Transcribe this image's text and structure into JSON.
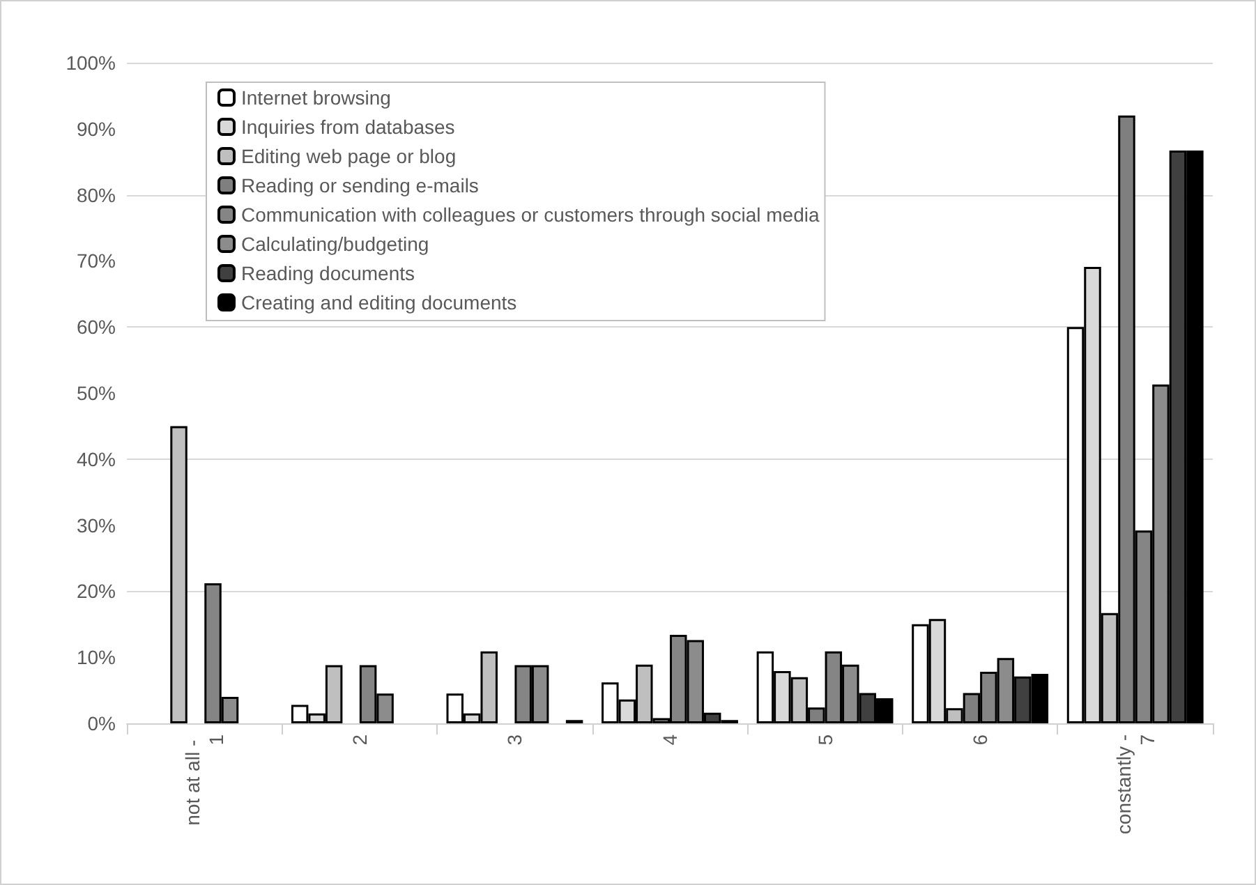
{
  "chart_data": {
    "type": "bar",
    "categories": [
      "not at all - 1",
      "2",
      "3",
      "4",
      "5",
      "6",
      "constantly - 7"
    ],
    "series": [
      {
        "name": "Internet browsing",
        "color": "#ffffff",
        "values": [
          null,
          2.8,
          4.5,
          6.2,
          10.9,
          15,
          60
        ]
      },
      {
        "name": "Inquiries from databases",
        "color": "#d9d9d9",
        "values": [
          null,
          1.5,
          1.5,
          3.6,
          7.9,
          15.8,
          69.1
        ]
      },
      {
        "name": "Editing web page or blog",
        "color": "#bfbfbf",
        "values": [
          45,
          8.8,
          10.9,
          8.9,
          7,
          2.3,
          16.7
        ]
      },
      {
        "name": "Reading or sending e-mails",
        "color": "#7f7f7f",
        "values": [
          null,
          null,
          null,
          0.8,
          2.4,
          4.6,
          92
        ]
      },
      {
        "name": "Communication with colleagues or customers through social media",
        "color": "#858585",
        "values": [
          21.2,
          8.8,
          8.8,
          13.4,
          10.9,
          7.8,
          29.2
        ]
      },
      {
        "name": "Calculating/budgeting",
        "color": "#8c8c8c",
        "values": [
          4,
          4.5,
          8.8,
          12.6,
          8.9,
          9.9,
          51.3
        ]
      },
      {
        "name": "Reading documents",
        "color": "#404040",
        "values": [
          null,
          null,
          null,
          1.6,
          4.6,
          7.1,
          86.7
        ]
      },
      {
        "name": "Creating and editing documents",
        "color": "#000000",
        "values": [
          null,
          null,
          0.5,
          0.5,
          3.8,
          7.5,
          86.7
        ]
      }
    ],
    "ylim": [
      0,
      100
    ],
    "yticks": [
      {
        "value": 0,
        "label": "0%"
      },
      {
        "value": 10,
        "label": "10%"
      },
      {
        "value": 20,
        "label": "20%"
      },
      {
        "value": 30,
        "label": "30%"
      },
      {
        "value": 40,
        "label": "40%"
      },
      {
        "value": 50,
        "label": "50%"
      },
      {
        "value": 60,
        "label": "60%"
      },
      {
        "value": 70,
        "label": "70%"
      },
      {
        "value": 80,
        "label": "80%"
      },
      {
        "value": 90,
        "label": "90%"
      },
      {
        "value": 100,
        "label": "100%"
      }
    ],
    "grid": "y",
    "legend": "top left"
  }
}
